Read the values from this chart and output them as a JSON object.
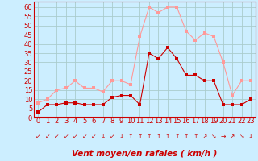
{
  "x": [
    0,
    1,
    2,
    3,
    4,
    5,
    6,
    7,
    8,
    9,
    10,
    11,
    12,
    13,
    14,
    15,
    16,
    17,
    18,
    19,
    20,
    21,
    22,
    23
  ],
  "wind_avg": [
    3,
    7,
    7,
    8,
    8,
    7,
    7,
    7,
    11,
    12,
    12,
    7,
    35,
    32,
    38,
    32,
    23,
    23,
    20,
    20,
    7,
    7,
    7,
    10
  ],
  "wind_gust": [
    8,
    10,
    15,
    16,
    20,
    16,
    16,
    14,
    20,
    20,
    18,
    44,
    60,
    57,
    60,
    60,
    47,
    42,
    46,
    44,
    30,
    12,
    20,
    20
  ],
  "bg_color": "#cceeff",
  "grid_color": "#aacccc",
  "line_avg_color": "#cc0000",
  "line_gust_color": "#ff9999",
  "marker_size": 2.5,
  "xlabel": "Vent moyen/en rafales ( km/h )",
  "ylim": [
    0,
    63
  ],
  "ytick_vals": [
    0,
    5,
    10,
    15,
    20,
    25,
    30,
    35,
    40,
    45,
    50,
    55,
    60
  ],
  "ytick_labels": [
    "0",
    "5",
    "10",
    "15",
    "20",
    "25",
    "30",
    "35",
    "40",
    "45",
    "50",
    "55",
    "60"
  ],
  "xticks": [
    0,
    1,
    2,
    3,
    4,
    5,
    6,
    7,
    8,
    9,
    10,
    11,
    12,
    13,
    14,
    15,
    16,
    17,
    18,
    19,
    20,
    21,
    22,
    23
  ],
  "tick_label_color": "#cc0000",
  "xlabel_color": "#cc0000",
  "xlabel_fontsize": 7.5,
  "tick_fontsize": 6,
  "arrow_symbols": [
    "↙",
    "↙",
    "↙",
    "↙",
    "↙",
    "↙",
    "↙",
    "↓",
    "↙",
    "↓",
    "↑",
    "↑",
    "↑",
    "↑",
    "↑",
    "↑",
    "↑",
    "↑",
    "↗",
    "↘",
    "→",
    "↗",
    "↘",
    "↓"
  ]
}
